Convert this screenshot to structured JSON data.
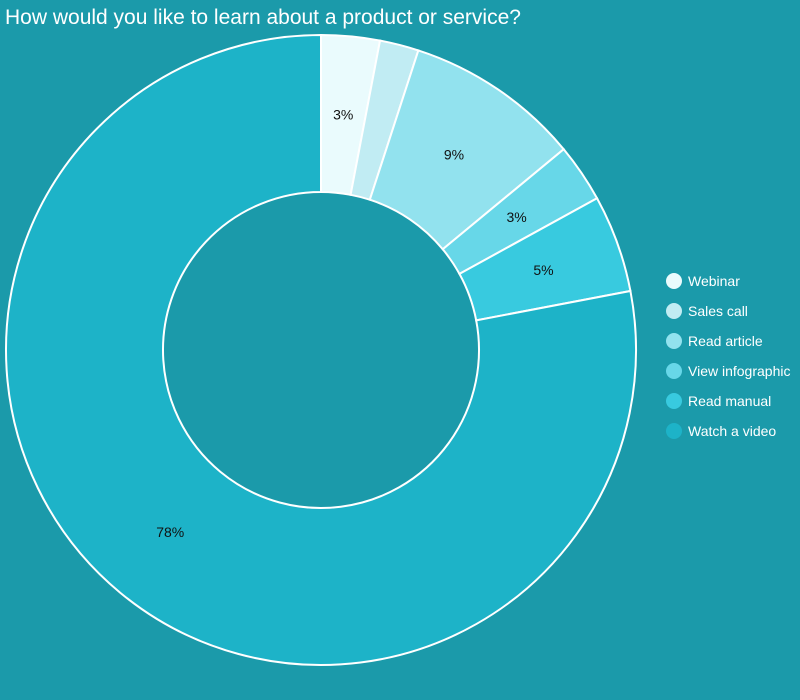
{
  "chart_data": {
    "type": "pie",
    "variant": "donut",
    "title": "How would you like to learn about a product or service?",
    "legend_position": "right",
    "slices": [
      {
        "label": "Webinar",
        "value": 3,
        "display": "3%",
        "color": "#eafbfd"
      },
      {
        "label": "Sales call",
        "value": 2,
        "display": "",
        "color": "#c1ecf3"
      },
      {
        "label": "Read article",
        "value": 9,
        "display": "9%",
        "color": "#92e2ee"
      },
      {
        "label": "View infographic",
        "value": 3,
        "display": "3%",
        "color": "#67d7e8"
      },
      {
        "label": "Read manual",
        "value": 5,
        "display": "5%",
        "color": "#38cadf"
      },
      {
        "label": "Watch a video",
        "value": 78,
        "display": "78%",
        "color": "#1db3c8"
      }
    ]
  }
}
